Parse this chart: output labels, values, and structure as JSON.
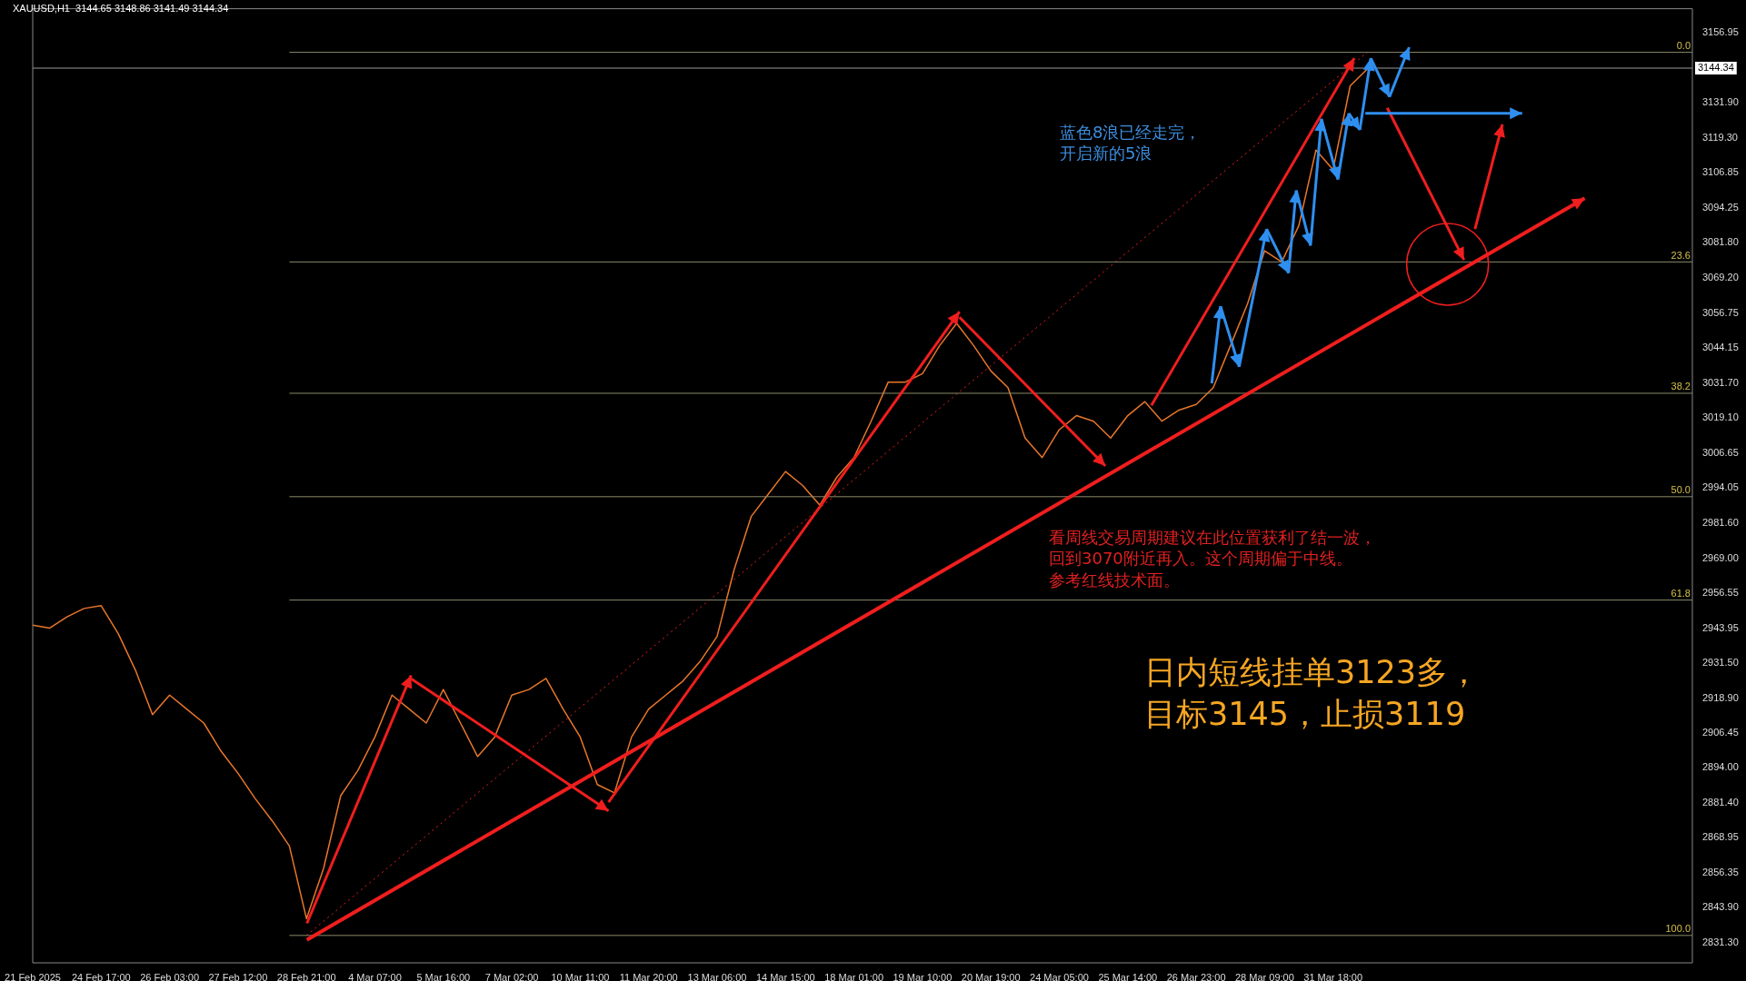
{
  "chart_data": {
    "type": "line",
    "title": "XAUUSD,H1  3144.65 3148.86 3141.49 3144.34",
    "categories": [
      "21 Feb 2025",
      null,
      null,
      null,
      "24 Feb 17:00",
      null,
      null,
      null,
      "26 Feb 03:00",
      null,
      null,
      null,
      "27 Feb 12:00",
      null,
      null,
      null,
      "28 Feb 21:00",
      null,
      null,
      null,
      "4 Mar 07:00",
      null,
      null,
      null,
      "5 Mar 16:00",
      null,
      null,
      null,
      "7 Mar 02:00",
      null,
      null,
      null,
      "10 Mar 11:00",
      null,
      null,
      null,
      "11 Mar 20:00",
      null,
      null,
      null,
      "13 Mar 06:00",
      null,
      null,
      null,
      "14 Mar 15:00",
      null,
      null,
      null,
      "18 Mar 01:00",
      null,
      null,
      null,
      "19 Mar 10:00",
      null,
      null,
      null,
      "20 Mar 19:00",
      null,
      null,
      null,
      "24 Mar 05:00",
      null,
      null,
      null,
      "25 Mar 14:00",
      null,
      null,
      null,
      "26 Mar 23:00",
      null,
      null,
      null,
      "28 Mar 09:00",
      null,
      null,
      null,
      "31 Mar 18:00",
      null,
      null,
      null,
      null,
      null,
      null,
      null,
      null,
      null,
      null,
      null,
      null,
      null,
      null,
      null,
      null,
      null,
      null,
      null,
      null,
      null
    ],
    "series": [
      {
        "color": "#e8762b",
        "values": [
          2945,
          2944,
          2948,
          2951,
          2952,
          2942,
          2929,
          2913,
          2920,
          2915,
          2910,
          2900,
          2892,
          2883,
          2875,
          2866,
          2840,
          2858,
          2884,
          2893,
          2905,
          2920,
          2915,
          2910,
          2922,
          2910,
          2898,
          2905,
          2920,
          2922,
          2926,
          2915,
          2905,
          2888,
          2885,
          2905,
          2915,
          2920,
          2925,
          2932,
          2941,
          2965,
          2984,
          2992,
          3000,
          2995,
          2988,
          2998,
          3005,
          3018,
          3032,
          3032,
          3035,
          3045,
          3053,
          3045,
          3036,
          3030,
          3012,
          3005,
          3015,
          3020,
          3018,
          3012,
          3020,
          3025,
          3018,
          3022,
          3024,
          3030,
          3045,
          3060,
          3079,
          3075,
          3088,
          3115,
          3108,
          3138,
          3144,
          null,
          null,
          null,
          null,
          null,
          null,
          null,
          null,
          null,
          null,
          null,
          null,
          null,
          null,
          null,
          null,
          null,
          null,
          null
        ]
      },
      {
        "type": "line",
        "color": "#f01e1e",
        "line_style": "dotted",
        "values": [
          null,
          null,
          null,
          null,
          null,
          null,
          null,
          null,
          null,
          null,
          null,
          null,
          null,
          null,
          null,
          null,
          2834,
          null,
          null,
          null,
          null,
          null,
          null,
          null,
          null,
          null,
          null,
          null,
          null,
          null,
          null,
          null,
          null,
          null,
          null,
          null,
          null,
          null,
          null,
          null,
          null,
          null,
          null,
          null,
          null,
          null,
          null,
          null,
          null,
          null,
          null,
          null,
          null,
          null,
          null,
          null,
          null,
          null,
          null,
          null,
          null,
          null,
          null,
          null,
          null,
          null,
          null,
          null,
          null,
          null,
          null,
          null,
          null,
          null,
          null,
          null,
          null,
          null,
          3150,
          null,
          null,
          null,
          null,
          null,
          null,
          null,
          null,
          null,
          null,
          null,
          null,
          null,
          null,
          null,
          null,
          null,
          null,
          null
        ]
      }
    ],
    "ylim": [
      2824.2,
      3165.6
    ],
    "yticks": [
      {
        "value": 2831.3,
        "label": "2831.30"
      },
      {
        "value": 2843.9,
        "label": "2843.90"
      },
      2856.35,
      2868.95,
      {
        "value": 2881.4,
        "label": "2881.40"
      },
      {
        "value": 2894,
        "label": "2894.00"
      },
      2906.45,
      {
        "value": 2918.9,
        "label": "2918.90"
      },
      {
        "value": 2931.5,
        "label": "2931.50"
      },
      2943.95,
      2956.55,
      {
        "value": 2969,
        "label": "2969.00"
      },
      {
        "value": 2981.6,
        "label": "2981.60"
      },
      2994.05,
      3006.65,
      {
        "value": 3019.1,
        "label": "3019.10"
      },
      {
        "value": 3031.7,
        "label": "3031.70"
      },
      3044.15,
      3056.75,
      {
        "value": 3069.2,
        "label": "3069.20"
      },
      {
        "value": 3081.8,
        "label": "3081.80"
      },
      3094.25,
      3106.85,
      {
        "value": 3119.3,
        "label": "3119.30"
      },
      {
        "value": 3131.9,
        "label": "3131.90"
      },
      3156.95
    ],
    "ref_lines": [
      {
        "axis": "y",
        "value": 3150,
        "color": "#8a8a6a"
      },
      {
        "axis": "y",
        "value": 3075,
        "color": "#8a8a6a"
      },
      {
        "axis": "y",
        "value": 3028,
        "color": "#8a8a6a"
      },
      {
        "axis": "y",
        "value": 2991,
        "color": "#8a8a6a"
      },
      {
        "axis": "y",
        "value": 2954,
        "color": "#8a8a6a"
      },
      {
        "axis": "y",
        "value": 2834,
        "color": "#8a8a6a"
      },
      {
        "axis": "y",
        "value": 3144.34,
        "label": "3144.34",
        "color": "#9a9a9a"
      }
    ],
    "annotations": [
      "蓝色8浪已经走完，开启新的5浪",
      "看周线交易周期建议在此位置获利了结一波，回到3070附近再入。这个周期偏于中线。",
      "参考红线技术面。",
      "日内短线挂单3123多，目标3145，止损3119",
      {
        "text": "0.0",
        "y": 3150
      },
      {
        "text": "23.6",
        "y": 3075
      },
      {
        "text": "38.2",
        "y": 3028
      },
      {
        "text": "50.0",
        "y": 2991
      },
      {
        "text": "61.8",
        "y": 2954
      },
      {
        "text": "100.0",
        "y": 2834
      }
    ],
    "grid": false,
    "legend": false,
    "marker": "none",
    "line_style": "solid"
  }
}
